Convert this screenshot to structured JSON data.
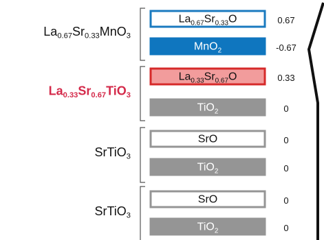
{
  "groups": [
    {
      "label": "La0.67Sr0.33MnO3",
      "color": "#111111",
      "bold": false
    },
    {
      "label": "La0.33Sr0.67TiO3",
      "color": "#d42a4a",
      "bold": true
    },
    {
      "label": "SrTiO3",
      "color": "#111111",
      "bold": false
    },
    {
      "label": "SrTiO3",
      "color": "#111111",
      "bold": false
    }
  ],
  "layers": [
    {
      "label": "La0.67Sr0.33O",
      "charge": 0.67,
      "fill": "#ffffff",
      "stroke": "#1a7abf",
      "text_color": "#111111"
    },
    {
      "label": "MnO2",
      "charge": -0.67,
      "fill": "#0f76bf",
      "stroke": "#0f76bf",
      "text_color": "#ffffff"
    },
    {
      "label": "La0.33Sr0.67O",
      "charge": 0.33,
      "fill": "#f29c9c",
      "stroke": "#d62a2a",
      "text_color": "#111111"
    },
    {
      "label": "TiO2",
      "charge": 0,
      "fill": "#959595",
      "stroke": "#959595",
      "text_color": "#ffffff"
    },
    {
      "label": "SrO",
      "charge": 0,
      "fill": "#ffffff",
      "stroke": "#959595",
      "text_color": "#111111"
    },
    {
      "label": "TiO2",
      "charge": 0,
      "fill": "#959595",
      "stroke": "#959595",
      "text_color": "#ffffff"
    },
    {
      "label": "SrO",
      "charge": 0,
      "fill": "#ffffff",
      "stroke": "#959595",
      "text_color": "#111111"
    },
    {
      "label": "TiO2",
      "charge": 0,
      "fill": "#959595",
      "stroke": "#959595",
      "text_color": "#ffffff"
    }
  ]
}
